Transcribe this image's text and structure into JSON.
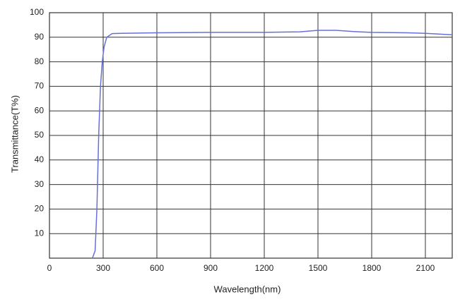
{
  "chart_data": {
    "type": "line",
    "xlabel": "Wavelength(nm)",
    "ylabel": "Transmittance(T%)",
    "x": [
      240,
      255,
      265,
      275,
      285,
      295,
      305,
      320,
      350,
      400,
      600,
      900,
      1200,
      1400,
      1500,
      1600,
      1700,
      1800,
      2000,
      2100,
      2250
    ],
    "series": [
      {
        "color": "#6670d6",
        "values": [
          0,
          3,
          20,
          50,
          70,
          80,
          86,
          90,
          91.5,
          91.6,
          91.8,
          92,
          92,
          92.2,
          92.8,
          92.8,
          92.3,
          92,
          91.8,
          91.6,
          91
        ]
      }
    ],
    "xlim": [
      0,
      2250
    ],
    "xticks": [
      0,
      300,
      600,
      900,
      1200,
      1500,
      1800,
      2100
    ],
    "ylim": [
      0,
      100
    ],
    "yticks": [
      10,
      20,
      30,
      40,
      50,
      60,
      70,
      80,
      90,
      100
    ],
    "grid": true
  }
}
